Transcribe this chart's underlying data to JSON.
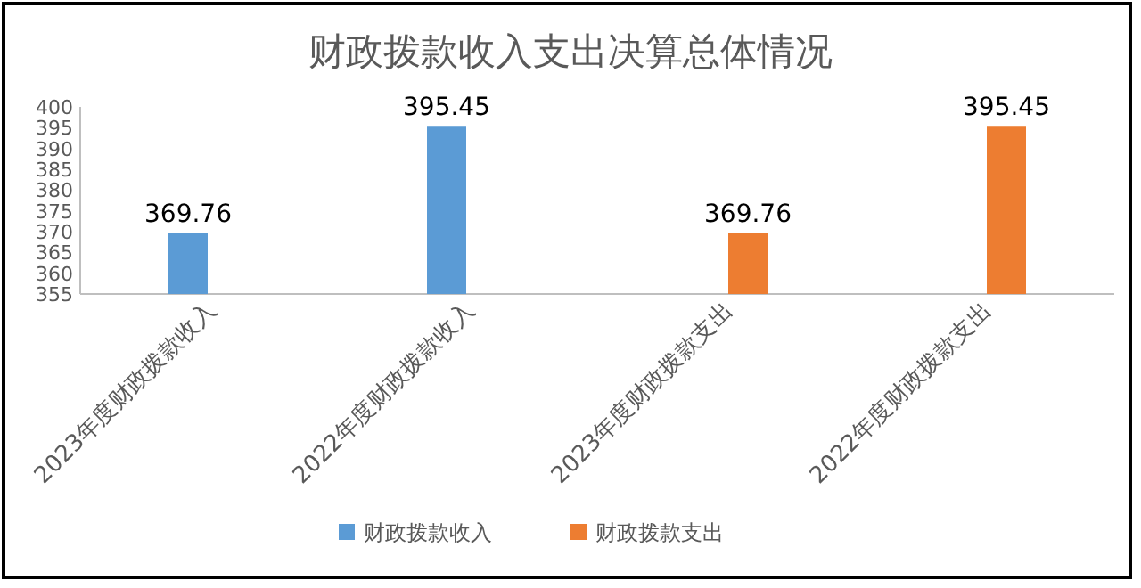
{
  "chart_data": {
    "type": "bar",
    "title": "财政拨款收入支出决算总体情况",
    "categories": [
      "2023年度财政拨款收入",
      "2022年度财政拨款收入",
      "2023年度财政拨款支出",
      "2022年度财政拨款支出"
    ],
    "series": [
      {
        "name": "财政拨款收入",
        "color": "#5b9bd5",
        "values": [
          369.76,
          395.45,
          null,
          null
        ]
      },
      {
        "name": "财政拨款支出",
        "color": "#ed7d31",
        "values": [
          null,
          null,
          369.76,
          395.45
        ]
      }
    ],
    "ylim": [
      355,
      400
    ],
    "yticks": [
      355,
      360,
      365,
      370,
      375,
      380,
      385,
      390,
      395,
      400
    ],
    "data_labels": true,
    "legend": "bottom"
  }
}
